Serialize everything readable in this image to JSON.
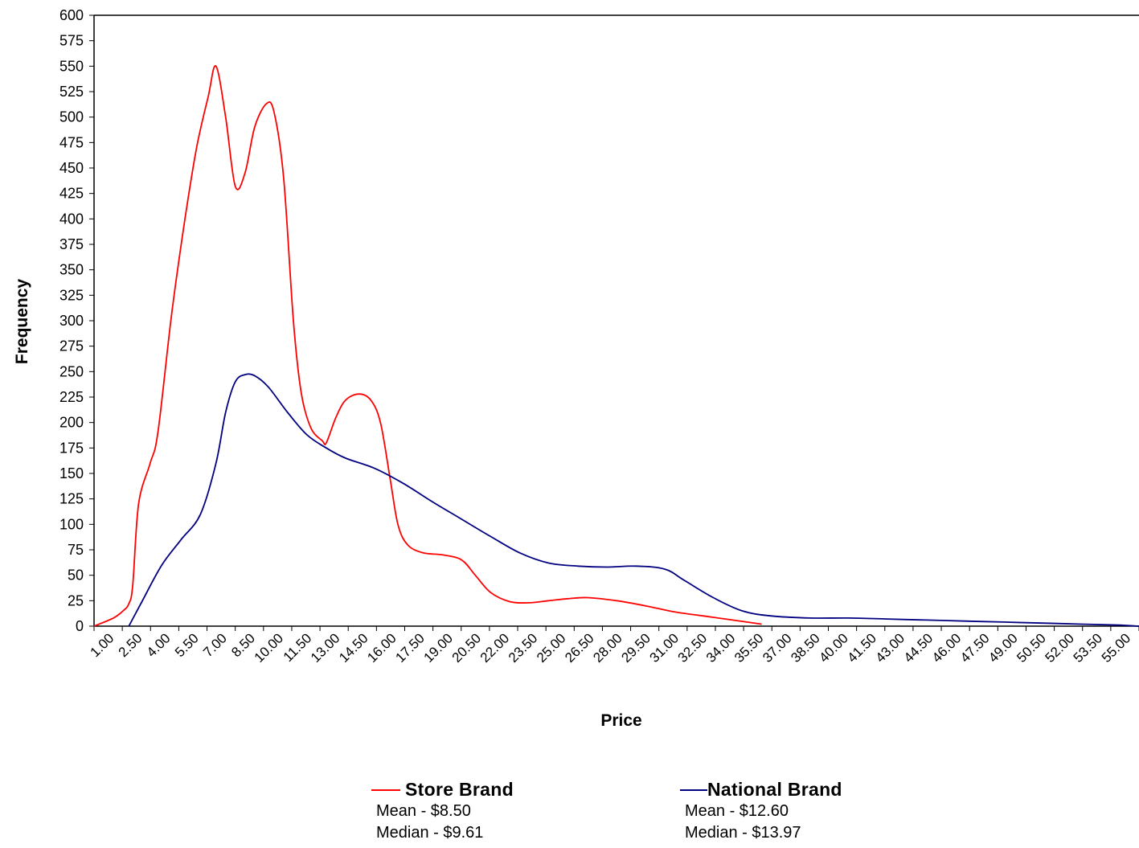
{
  "chart_data": {
    "type": "line",
    "xlabel": "Price",
    "ylabel": "Frequency",
    "ylim": [
      0,
      600
    ],
    "y_ticks": [
      "0",
      "25",
      "50",
      "75",
      "100",
      "125",
      "150",
      "175",
      "200",
      "225",
      "250",
      "275",
      "300",
      "325",
      "350",
      "375",
      "400",
      "425",
      "450",
      "475",
      "500",
      "525",
      "550",
      "575",
      "600"
    ],
    "x_ticks": [
      "1.00",
      "2.50",
      "4.00",
      "5.50",
      "7.00",
      "8.50",
      "10.00",
      "11.50",
      "13.00",
      "14.50",
      "16.00",
      "17.50",
      "19.00",
      "20.50",
      "22.00",
      "23.50",
      "25.00",
      "26.50",
      "28.00",
      "29.50",
      "31.00",
      "32.50",
      "34.00",
      "35.50",
      "37.00",
      "38.50",
      "40.00",
      "41.50",
      "43.00",
      "44.50",
      "46.00",
      "47.50",
      "49.00",
      "50.50",
      "52.00",
      "53.50",
      "55.00"
    ],
    "xlim": [
      1.0,
      55.0
    ],
    "grid": false,
    "legend_position": "bottom",
    "series": [
      {
        "name": "Store Brand",
        "color": "#ff0000",
        "stats": [
          "Mean - $8.50",
          "Median - $9.61"
        ],
        "x": [
          1.0,
          2.0,
          2.5,
          2.8,
          3.0,
          3.3,
          3.9,
          4.3,
          5.0,
          5.7,
          6.3,
          6.9,
          7.3,
          7.8,
          8.3,
          8.8,
          9.3,
          9.9,
          10.3,
          10.8,
          11.3,
          11.7,
          12.2,
          12.8,
          13.0,
          13.5,
          14.0,
          14.7,
          15.3,
          15.8,
          16.3,
          16.7,
          17.2,
          18.0,
          19.0,
          20.0,
          20.7,
          21.5,
          22.5,
          23.5,
          24.5,
          25.5,
          26.5,
          28.0,
          29.5,
          31.0,
          32.5,
          34.0,
          35.5
        ],
        "y": [
          0,
          8,
          15,
          22,
          40,
          120,
          160,
          190,
          305,
          400,
          470,
          520,
          550,
          500,
          432,
          445,
          490,
          513,
          505,
          440,
          300,
          230,
          195,
          182,
          180,
          205,
          222,
          228,
          222,
          200,
          145,
          100,
          80,
          72,
          70,
          65,
          50,
          33,
          24,
          23,
          25,
          27,
          28,
          25,
          20,
          14,
          10,
          6,
          2
        ]
      },
      {
        "name": "National Brand",
        "color": "#000080",
        "stats": [
          "Mean - $12.60",
          "Median - $13.97"
        ],
        "x": [
          2.8,
          3.5,
          4.5,
          5.5,
          6.5,
          7.3,
          7.8,
          8.3,
          8.8,
          9.3,
          10.0,
          11.0,
          12.0,
          13.0,
          14.0,
          15.5,
          17.0,
          18.5,
          20.0,
          21.5,
          23.0,
          24.5,
          26.0,
          27.5,
          29.0,
          30.5,
          31.5,
          33.0,
          34.5,
          36.0,
          38.0,
          40.0,
          42.0,
          44.0,
          46.0,
          48.0,
          50.0,
          52.0,
          54.0,
          55.0
        ],
        "y": [
          0,
          25,
          60,
          85,
          110,
          160,
          210,
          240,
          247,
          246,
          235,
          210,
          188,
          175,
          165,
          155,
          140,
          122,
          105,
          88,
          72,
          62,
          59,
          58,
          59,
          56,
          45,
          28,
          15,
          10,
          8,
          8,
          7,
          6,
          5,
          4,
          3,
          2,
          1,
          0
        ]
      }
    ]
  }
}
